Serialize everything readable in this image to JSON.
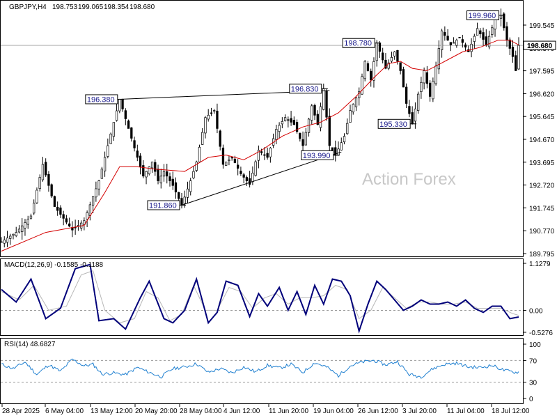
{
  "chart_data": [
    {
      "type": "candlestick",
      "symbol": "GBPJPY,H4",
      "ohlc": {
        "open": "198.753",
        "high": "199.065",
        "low": "198.354",
        "close": "198.680"
      },
      "watermark": "Action Forex",
      "current_price_label": "198.680",
      "current_price": 198.68,
      "y_ticks": [
        "199.545",
        "198.570",
        "197.595",
        "196.620",
        "195.645",
        "194.670",
        "193.695",
        "192.720",
        "191.745",
        "190.770",
        "189.795"
      ],
      "ylim": [
        189.795,
        199.96
      ],
      "x_ticks": [
        "28 Apr 2025",
        "6 May 04:00",
        "13 May 12:00",
        "20 May 20:00",
        "28 May 04:00",
        "4 Jun 12:00",
        "11 Jun 20:00",
        "19 Jun 04:00",
        "26 Jun 12:00",
        "3 Jul 20:00",
        "11 Jul 04:00",
        "18 Jul 12:00"
      ],
      "price_path": [
        [
          0,
          190.3
        ],
        [
          5,
          190.7
        ],
        [
          10,
          191.4
        ],
        [
          14,
          193.6
        ],
        [
          18,
          191.8
        ],
        [
          24,
          190.8
        ],
        [
          28,
          191.2
        ],
        [
          33,
          192.9
        ],
        [
          37,
          194.9
        ],
        [
          40,
          196.38
        ],
        [
          45,
          194.3
        ],
        [
          48,
          193.1
        ],
        [
          51,
          193.7
        ],
        [
          53,
          192.9
        ],
        [
          55,
          193.3
        ],
        [
          58,
          192.7
        ],
        [
          61,
          191.86
        ],
        [
          64,
          192.9
        ],
        [
          66,
          193.7
        ],
        [
          69,
          195.6
        ],
        [
          72,
          195.9
        ],
        [
          75,
          193.6
        ],
        [
          78,
          193.9
        ],
        [
          81,
          193.2
        ],
        [
          84,
          192.75
        ],
        [
          87,
          194.2
        ],
        [
          90,
          193.9
        ],
        [
          93,
          195.1
        ],
        [
          96,
          195.6
        ],
        [
          99,
          195.3
        ],
        [
          102,
          194.4
        ],
        [
          105,
          196.1
        ],
        [
          107,
          195.3
        ],
        [
          109,
          196.83
        ],
        [
          111,
          194.4
        ],
        [
          113,
          193.99
        ],
        [
          116,
          194.8
        ],
        [
          118,
          195.9
        ],
        [
          121,
          196.7
        ],
        [
          123,
          198.0
        ],
        [
          125,
          197.2
        ],
        [
          127,
          198.78
        ],
        [
          130,
          197.7
        ],
        [
          133,
          198.4
        ],
        [
          135,
          197.6
        ],
        [
          137,
          196.2
        ],
        [
          139,
          195.33
        ],
        [
          141,
          196.6
        ],
        [
          143,
          197.6
        ],
        [
          145,
          196.5
        ],
        [
          147,
          197.8
        ],
        [
          149,
          199.3
        ],
        [
          152,
          198.7
        ],
        [
          155,
          199.0
        ],
        [
          158,
          198.4
        ],
        [
          161,
          199.4
        ],
        [
          164,
          198.7
        ],
        [
          167,
          199.8
        ],
        [
          169,
          199.96
        ],
        [
          171,
          198.9
        ],
        [
          173,
          198.2
        ],
        [
          174,
          197.6
        ],
        [
          175,
          198.68
        ]
      ],
      "ma_series": [
        [
          0,
          189.9
        ],
        [
          15,
          190.7
        ],
        [
          28,
          191.0
        ],
        [
          35,
          192.4
        ],
        [
          40,
          193.5
        ],
        [
          46,
          193.5
        ],
        [
          52,
          193.4
        ],
        [
          62,
          193.3
        ],
        [
          70,
          193.9
        ],
        [
          76,
          194.0
        ],
        [
          82,
          193.8
        ],
        [
          88,
          194.2
        ],
        [
          95,
          194.8
        ],
        [
          102,
          195.2
        ],
        [
          108,
          195.4
        ],
        [
          114,
          195.8
        ],
        [
          120,
          196.5
        ],
        [
          126,
          197.3
        ],
        [
          131,
          197.9
        ],
        [
          135,
          198.0
        ],
        [
          139,
          197.7
        ],
        [
          144,
          197.6
        ],
        [
          150,
          198.0
        ],
        [
          156,
          198.4
        ],
        [
          162,
          198.6
        ],
        [
          168,
          198.9
        ],
        [
          172,
          198.9
        ],
        [
          175,
          198.7
        ]
      ],
      "trendlines": [
        {
          "from": [
            40,
            196.38
          ],
          "to": [
            111,
            196.75
          ]
        },
        {
          "from": [
            61,
            191.86
          ],
          "to": [
            115,
            194.13
          ]
        }
      ],
      "annotations": [
        {
          "text": "196.380",
          "x": 40,
          "y": 196.38,
          "side": "left"
        },
        {
          "text": "196.830",
          "x": 109,
          "y": 196.83,
          "side": "left"
        },
        {
          "text": "191.860",
          "x": 61,
          "y": 191.86,
          "side": "left"
        },
        {
          "text": "193.990",
          "x": 113,
          "y": 193.99,
          "side": "left"
        },
        {
          "text": "198.780",
          "x": 127,
          "y": 198.78,
          "side": "left"
        },
        {
          "text": "195.330",
          "x": 139,
          "y": 195.33,
          "side": "left"
        },
        {
          "text": "199.960",
          "x": 169,
          "y": 199.96,
          "side": "left"
        }
      ]
    },
    {
      "type": "line",
      "title": "MACD(12,26,9) -0.1585 -0.1188",
      "y_ticks": [
        "1.1279",
        "0.00",
        "-0.5276"
      ],
      "ylim": [
        -0.5276,
        1.1279
      ],
      "macd": [
        [
          0,
          0.5
        ],
        [
          5,
          0.2
        ],
        [
          10,
          0.75
        ],
        [
          15,
          -0.2
        ],
        [
          20,
          0.05
        ],
        [
          25,
          1.0
        ],
        [
          30,
          1.1
        ],
        [
          33,
          -0.25
        ],
        [
          38,
          -0.2
        ],
        [
          42,
          -0.45
        ],
        [
          47,
          0.3
        ],
        [
          50,
          0.7
        ],
        [
          55,
          -0.2
        ],
        [
          58,
          -0.3
        ],
        [
          62,
          0.0
        ],
        [
          66,
          0.75
        ],
        [
          70,
          -0.3
        ],
        [
          73,
          -0.05
        ],
        [
          76,
          0.7
        ],
        [
          80,
          0.6
        ],
        [
          84,
          -0.15
        ],
        [
          87,
          0.4
        ],
        [
          90,
          0.1
        ],
        [
          94,
          0.55
        ],
        [
          97,
          0.0
        ],
        [
          100,
          0.45
        ],
        [
          103,
          -0.1
        ],
        [
          106,
          0.6
        ],
        [
          109,
          0.15
        ],
        [
          112,
          0.75
        ],
        [
          115,
          0.7
        ],
        [
          118,
          0.35
        ],
        [
          121,
          -0.5
        ],
        [
          124,
          0.15
        ],
        [
          127,
          0.7
        ],
        [
          130,
          0.5
        ],
        [
          133,
          0.25
        ],
        [
          136,
          0.0
        ],
        [
          139,
          0.1
        ],
        [
          142,
          0.25
        ],
        [
          145,
          0.15
        ],
        [
          148,
          0.15
        ],
        [
          151,
          0.2
        ],
        [
          154,
          0.1
        ],
        [
          157,
          0.25
        ],
        [
          160,
          0.05
        ],
        [
          163,
          -0.05
        ],
        [
          166,
          0.1
        ],
        [
          169,
          0.1
        ],
        [
          172,
          -0.2
        ],
        [
          175,
          -0.16
        ]
      ],
      "signal": [
        [
          0,
          0.45
        ],
        [
          6,
          0.25
        ],
        [
          11,
          0.6
        ],
        [
          16,
          0.0
        ],
        [
          22,
          0.1
        ],
        [
          27,
          0.85
        ],
        [
          31,
          0.95
        ],
        [
          35,
          0.0
        ],
        [
          40,
          -0.3
        ],
        [
          45,
          -0.2
        ],
        [
          49,
          0.45
        ],
        [
          53,
          0.3
        ],
        [
          57,
          -0.25
        ],
        [
          61,
          -0.1
        ],
        [
          65,
          0.6
        ],
        [
          69,
          0.0
        ],
        [
          73,
          0.0
        ],
        [
          77,
          0.55
        ],
        [
          81,
          0.45
        ],
        [
          85,
          0.05
        ],
        [
          89,
          0.3
        ],
        [
          93,
          0.4
        ],
        [
          97,
          0.15
        ],
        [
          101,
          0.3
        ],
        [
          105,
          0.3
        ],
        [
          109,
          0.35
        ],
        [
          113,
          0.6
        ],
        [
          117,
          0.5
        ],
        [
          121,
          -0.2
        ],
        [
          125,
          0.0
        ],
        [
          129,
          0.55
        ],
        [
          133,
          0.3
        ],
        [
          137,
          0.05
        ],
        [
          141,
          0.2
        ],
        [
          145,
          0.2
        ],
        [
          149,
          0.15
        ],
        [
          153,
          0.15
        ],
        [
          157,
          0.2
        ],
        [
          161,
          0.05
        ],
        [
          165,
          0.05
        ],
        [
          169,
          0.05
        ],
        [
          173,
          -0.08
        ],
        [
          175,
          -0.12
        ]
      ]
    },
    {
      "type": "line",
      "title": "RSI(14) 48.6827",
      "y_ticks": [
        "100",
        "70",
        "30",
        "0"
      ],
      "ylim": [
        0,
        100
      ],
      "rsi": [
        [
          0,
          63
        ],
        [
          4,
          55
        ],
        [
          8,
          67
        ],
        [
          12,
          44
        ],
        [
          16,
          62
        ],
        [
          20,
          50
        ],
        [
          24,
          72
        ],
        [
          28,
          60
        ],
        [
          31,
          63
        ],
        [
          34,
          45
        ],
        [
          38,
          47
        ],
        [
          42,
          44
        ],
        [
          46,
          57
        ],
        [
          50,
          48
        ],
        [
          54,
          40
        ],
        [
          58,
          55
        ],
        [
          62,
          58
        ],
        [
          66,
          64
        ],
        [
          70,
          48
        ],
        [
          74,
          55
        ],
        [
          78,
          47
        ],
        [
          82,
          58
        ],
        [
          86,
          49
        ],
        [
          90,
          61
        ],
        [
          94,
          56
        ],
        [
          98,
          63
        ],
        [
          102,
          48
        ],
        [
          106,
          66
        ],
        [
          110,
          58
        ],
        [
          114,
          42
        ],
        [
          118,
          60
        ],
        [
          122,
          67
        ],
        [
          126,
          70
        ],
        [
          130,
          62
        ],
        [
          134,
          68
        ],
        [
          138,
          44
        ],
        [
          142,
          40
        ],
        [
          146,
          55
        ],
        [
          150,
          63
        ],
        [
          154,
          65
        ],
        [
          158,
          58
        ],
        [
          162,
          57
        ],
        [
          166,
          61
        ],
        [
          170,
          52
        ],
        [
          174,
          48
        ],
        [
          175,
          48.68
        ]
      ]
    }
  ]
}
